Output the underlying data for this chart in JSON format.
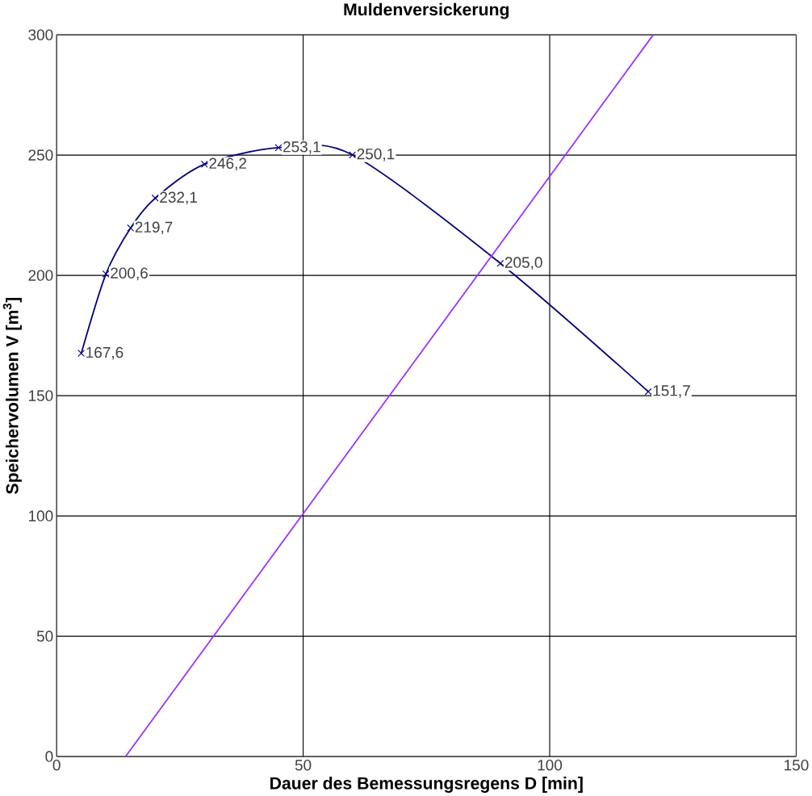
{
  "chart_data": {
    "type": "line",
    "title": "Muldenversickerung",
    "xlabel": "Dauer des Bemessungsregens  D [min]",
    "ylabel": "Speichervolumen V [m$^{3}$]",
    "xlim": [
      0,
      150
    ],
    "ylim": [
      0,
      300
    ],
    "xticks": [
      0,
      50,
      100,
      150
    ],
    "yticks": [
      0,
      50,
      100,
      150,
      200,
      250,
      300
    ],
    "grid": true,
    "series": [
      {
        "color": "#000080",
        "marker": "cross",
        "line_style": "solid",
        "x": [
          5,
          10,
          15,
          20,
          30,
          45,
          60,
          90,
          120
        ],
        "values": [
          167.6,
          200.6,
          219.7,
          232.1,
          246.2,
          253.1,
          250.1,
          205.0,
          151.7
        ],
        "value_labels": [
          "167,6",
          "200,6",
          "219,7",
          "232,1",
          "246,2",
          "253,1",
          "250,1",
          "205,0",
          "151,7"
        ]
      },
      {
        "color": "#9b30ff",
        "marker": "none",
        "line_style": "solid",
        "x": [
          14,
          121
        ],
        "values": [
          0,
          300
        ]
      }
    ]
  }
}
